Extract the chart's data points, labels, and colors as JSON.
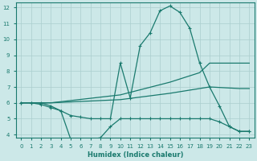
{
  "xlabel": "Humidex (Indice chaleur)",
  "bg_color": "#cce8e8",
  "line_color": "#1a7a6e",
  "grid_color": "#aacece",
  "xlim": [
    -0.5,
    23.5
  ],
  "ylim": [
    3.8,
    12.3
  ],
  "yticks": [
    4,
    5,
    6,
    7,
    8,
    9,
    10,
    11,
    12
  ],
  "xticks": [
    0,
    1,
    2,
    3,
    4,
    5,
    6,
    7,
    8,
    9,
    10,
    11,
    12,
    13,
    14,
    15,
    16,
    17,
    18,
    19,
    20,
    21,
    22,
    23
  ],
  "series": [
    {
      "x": [
        0,
        1,
        2,
        3,
        4,
        5,
        6,
        7,
        8,
        9,
        10,
        11,
        12,
        13,
        14,
        15,
        16,
        17,
        18,
        19,
        20,
        21,
        22,
        23
      ],
      "y": [
        6.0,
        6.0,
        6.0,
        5.8,
        5.5,
        5.2,
        5.1,
        5.0,
        5.0,
        5.0,
        8.5,
        6.3,
        9.6,
        10.4,
        11.8,
        12.1,
        11.7,
        10.7,
        8.5,
        7.0,
        5.8,
        4.5,
        4.2,
        4.2
      ],
      "marker": true
    },
    {
      "x": [
        0,
        3,
        10,
        15,
        18,
        19,
        22,
        23
      ],
      "y": [
        6.0,
        6.0,
        6.5,
        7.3,
        7.9,
        8.5,
        8.5,
        8.5
      ],
      "marker": false
    },
    {
      "x": [
        0,
        3,
        10,
        15,
        18,
        19,
        22,
        23
      ],
      "y": [
        6.0,
        6.0,
        6.2,
        6.6,
        6.9,
        7.0,
        6.9,
        6.9
      ],
      "marker": false
    },
    {
      "x": [
        0,
        1,
        2,
        3,
        4,
        5,
        6,
        7,
        8,
        9,
        10,
        11,
        12,
        13,
        14,
        15,
        16,
        17,
        18,
        19,
        20,
        21,
        22,
        23
      ],
      "y": [
        6.0,
        6.0,
        5.9,
        5.7,
        5.5,
        3.7,
        3.7,
        3.7,
        3.8,
        4.5,
        5.0,
        5.0,
        5.0,
        5.0,
        5.0,
        5.0,
        5.0,
        5.0,
        5.0,
        5.0,
        4.8,
        4.5,
        4.2,
        4.2
      ],
      "marker": true
    }
  ]
}
